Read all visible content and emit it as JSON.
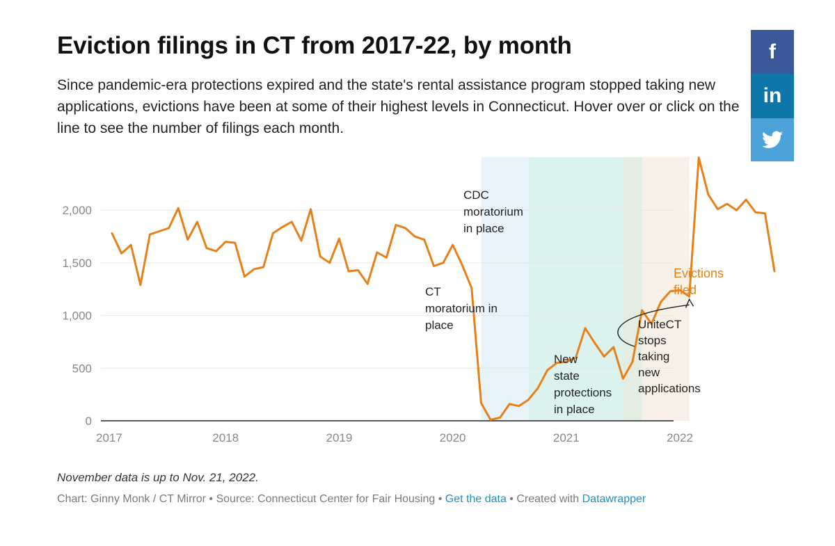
{
  "title": "Eviction filings in CT from 2017-22, by month",
  "description": "Since pandemic-era protections expired and the state's rental assistance program stopped taking new applications, evictions have been at some of their highest levels in Connecticut. Hover over or click on the line to see the number of filings each month.",
  "social": {
    "facebook": "f",
    "linkedin": "in",
    "twitter": "twitter-bird-icon"
  },
  "note": "November data is up to Nov. 21, 2022.",
  "credits": {
    "chart_by": "Chart: Ginny Monk / CT Mirror",
    "sep1": " • ",
    "source": "Source: Connecticut Center for Fair Housing",
    "sep2": " • ",
    "get_data": "Get the data",
    "sep3": " • ",
    "created_with": "Created with ",
    "datawrapper": "Datawrapper"
  },
  "colors": {
    "line": "#e8801a",
    "ct_band": "#e9f3fa",
    "cdc_band": "#dbf2ee",
    "overlap_band": "#e3ede2",
    "state_band": "#f7f1e8",
    "annotation": "#222222",
    "grid": "#e6e6e6",
    "tick": "#888888"
  },
  "chart_data": {
    "type": "line",
    "x_start": "2017-01",
    "x_end": "2022-11",
    "ylim": [
      0,
      2500
    ],
    "yticks": [
      0,
      500,
      1000,
      1500,
      2000
    ],
    "ytick_labels": [
      "0",
      "500",
      "1,000",
      "1,500",
      "2,000"
    ],
    "xticks": [
      "2017-01",
      "2018-01",
      "2019-01",
      "2020-01",
      "2021-01",
      "2022-01"
    ],
    "xtick_labels": [
      "2017",
      "2018",
      "2019",
      "2020",
      "2021",
      "2022"
    ],
    "grid": true,
    "series": [
      {
        "name": "Evictions filed",
        "x": [
          "2017-01",
          "2017-02",
          "2017-03",
          "2017-04",
          "2017-05",
          "2017-06",
          "2017-07",
          "2017-08",
          "2017-09",
          "2017-10",
          "2017-11",
          "2017-12",
          "2018-01",
          "2018-02",
          "2018-03",
          "2018-04",
          "2018-05",
          "2018-06",
          "2018-07",
          "2018-08",
          "2018-09",
          "2018-10",
          "2018-11",
          "2018-12",
          "2019-01",
          "2019-02",
          "2019-03",
          "2019-04",
          "2019-05",
          "2019-06",
          "2019-07",
          "2019-08",
          "2019-09",
          "2019-10",
          "2019-11",
          "2019-12",
          "2020-01",
          "2020-02",
          "2020-03",
          "2020-04",
          "2020-05",
          "2020-06",
          "2020-07",
          "2020-08",
          "2020-09",
          "2020-10",
          "2020-11",
          "2020-12",
          "2021-01",
          "2021-02",
          "2021-03",
          "2021-04",
          "2021-05",
          "2021-06",
          "2021-07",
          "2021-08",
          "2021-09",
          "2021-10",
          "2021-11",
          "2021-12",
          "2022-01",
          "2022-02",
          "2022-03",
          "2022-04",
          "2022-05",
          "2022-06",
          "2022-07",
          "2022-08",
          "2022-09",
          "2022-10",
          "2022-11"
        ],
        "values": [
          1780,
          1590,
          1670,
          1290,
          1770,
          1800,
          1830,
          2020,
          1720,
          1890,
          1640,
          1610,
          1700,
          1690,
          1370,
          1440,
          1460,
          1780,
          1840,
          1890,
          1710,
          2010,
          1560,
          1500,
          1730,
          1420,
          1430,
          1300,
          1600,
          1550,
          1860,
          1830,
          1750,
          1720,
          1470,
          1500,
          1670,
          1480,
          1260,
          170,
          10,
          30,
          160,
          140,
          200,
          310,
          480,
          550,
          560,
          600,
          880,
          740,
          610,
          700,
          400,
          560,
          1050,
          920,
          1130,
          1230,
          1240,
          1180,
          2500,
          2150,
          2010,
          2060,
          2000,
          2100,
          1980,
          1970,
          1420
        ]
      }
    ],
    "bands": [
      {
        "from": "2020-04",
        "to": "2020-09",
        "label": "CT moratorium in place"
      },
      {
        "from": "2020-09",
        "to": "2021-07",
        "label": "CDC moratorium in place"
      },
      {
        "from": "2021-07",
        "to": "2021-09",
        "label": ""
      },
      {
        "from": "2021-09",
        "to": "2022-02",
        "label": "New state protections in place"
      }
    ],
    "annotations": {
      "ct": [
        "CT",
        "moratorium in",
        "place"
      ],
      "cdc": [
        "CDC",
        "moratorium",
        "in place"
      ],
      "state": [
        "New",
        "state",
        "protections",
        "in place"
      ],
      "unite": [
        "UniteCT",
        "stops",
        "taking",
        "new",
        "applications"
      ],
      "line_label": [
        "Evictions",
        "filed"
      ]
    }
  }
}
